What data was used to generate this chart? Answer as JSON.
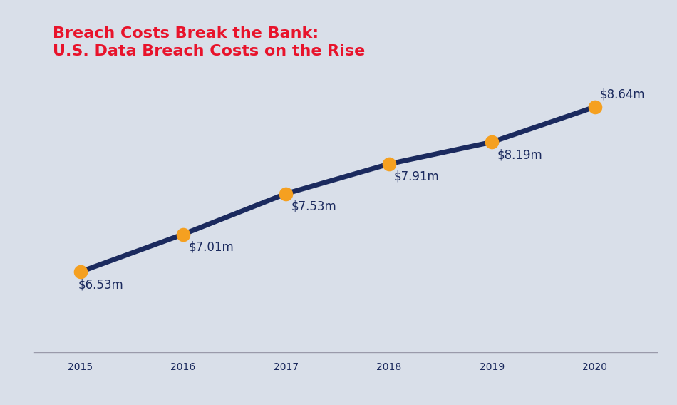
{
  "title_line1": "Breach Costs Break the Bank:",
  "title_line2": "U.S. Data Breach Costs on the Rise",
  "years": [
    2015,
    2016,
    2017,
    2018,
    2019,
    2020
  ],
  "values": [
    6.53,
    7.01,
    7.53,
    7.91,
    8.19,
    8.64
  ],
  "labels": [
    "$6.53m",
    "$7.01m",
    "$7.53m",
    "$7.91m",
    "$8.19m",
    "$8.64m"
  ],
  "label_ha": [
    "left",
    "left",
    "left",
    "left",
    "left",
    "left"
  ],
  "label_va": [
    "top",
    "top",
    "top",
    "top",
    "top",
    "bottom"
  ],
  "label_dx": [
    -0.02,
    0.05,
    0.05,
    0.05,
    0.05,
    0.05
  ],
  "label_dy": [
    -0.08,
    -0.08,
    -0.08,
    -0.08,
    -0.08,
    0.08
  ],
  "bg_color": "#d9dfe9",
  "line_color": "#1b2a5e",
  "dot_color": "#f5a020",
  "title_color": "#e8132b",
  "label_color": "#1b2a5e",
  "axis_tick_color": "#1b2a5e",
  "line_width": 5.0,
  "dot_size": 200,
  "title_fontsize": 16,
  "label_fontsize": 12,
  "tick_fontsize": 14,
  "ylim": [
    5.5,
    9.8
  ],
  "xlim": [
    2014.55,
    2020.6
  ]
}
